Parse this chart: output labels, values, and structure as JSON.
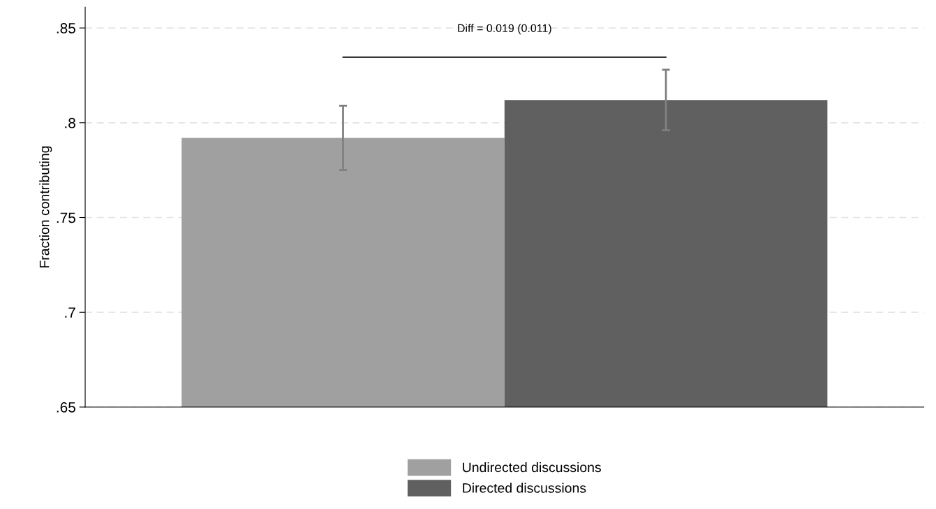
{
  "chart_data": {
    "type": "bar",
    "ylabel": "Fraction contributing",
    "categories": [
      null
    ],
    "series": [
      {
        "name": "Undirected discussions",
        "color": "#a0a0a0",
        "values": [
          0.792
        ],
        "errors": [
          0.017
        ]
      },
      {
        "name": "Directed discussions",
        "color": "#606060",
        "values": [
          0.812
        ],
        "errors": [
          0.016
        ]
      }
    ],
    "ylim": [
      0.65,
      0.861
    ],
    "yticks": [
      {
        "value": 0.65,
        "label": ".65"
      },
      {
        "value": 0.7,
        "label": ".7"
      },
      {
        "value": 0.75,
        "label": ".75"
      },
      {
        "value": 0.8,
        "label": ".8"
      },
      {
        "value": 0.85,
        "label": ".85"
      }
    ],
    "grid": "y",
    "legend": "bottom",
    "annotations": [
      "Diff = 0.019 (0.011)"
    ]
  }
}
